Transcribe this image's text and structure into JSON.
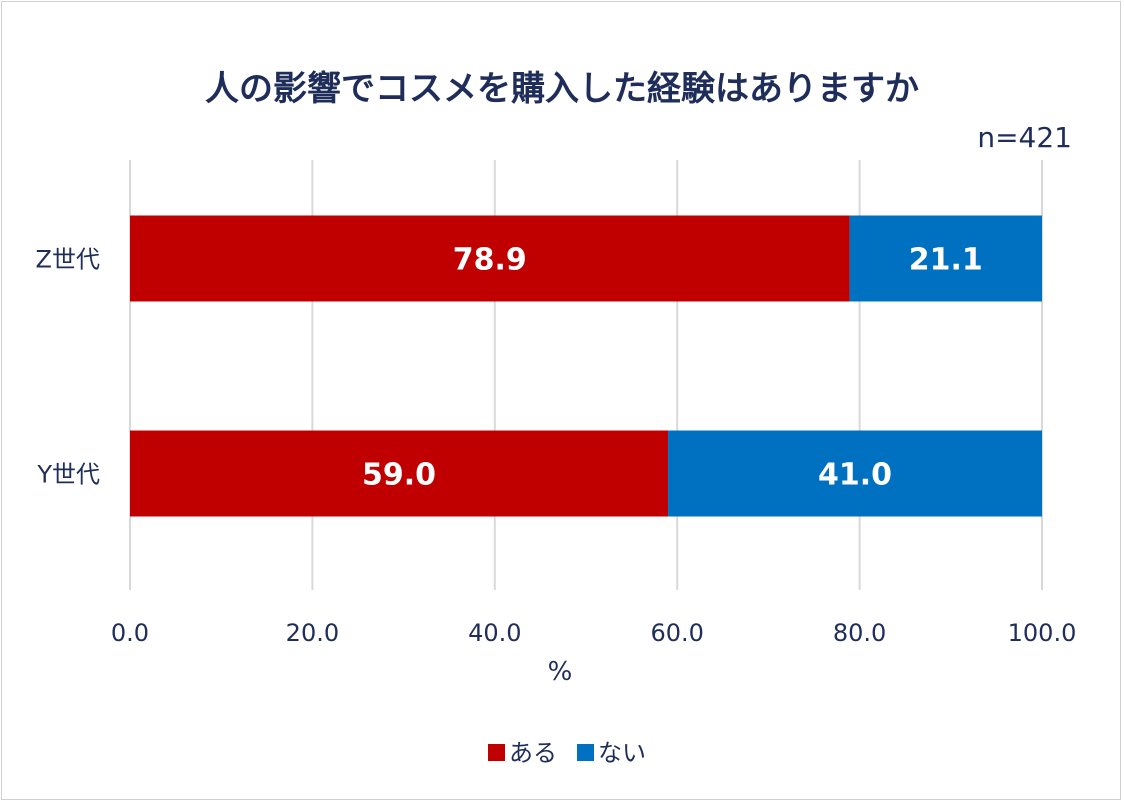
{
  "chart_data": {
    "type": "bar",
    "orientation": "horizontal",
    "stacked": true,
    "title": "人の影響でコスメを購入した経験はありますか",
    "note": "n=421",
    "categories": [
      "Z世代",
      "Y世代"
    ],
    "series": [
      {
        "name": "ある",
        "values": [
          78.9,
          59.0
        ],
        "color": "#c00000"
      },
      {
        "name": "ない",
        "values": [
          21.1,
          41.0
        ],
        "color": "#0070c0"
      }
    ],
    "xlabel": "%",
    "xlim": [
      0,
      100
    ],
    "xticks": [
      "0.0",
      "20.0",
      "40.0",
      "60.0",
      "80.0",
      "100.0"
    ],
    "grid": true,
    "legend": "bottom"
  }
}
